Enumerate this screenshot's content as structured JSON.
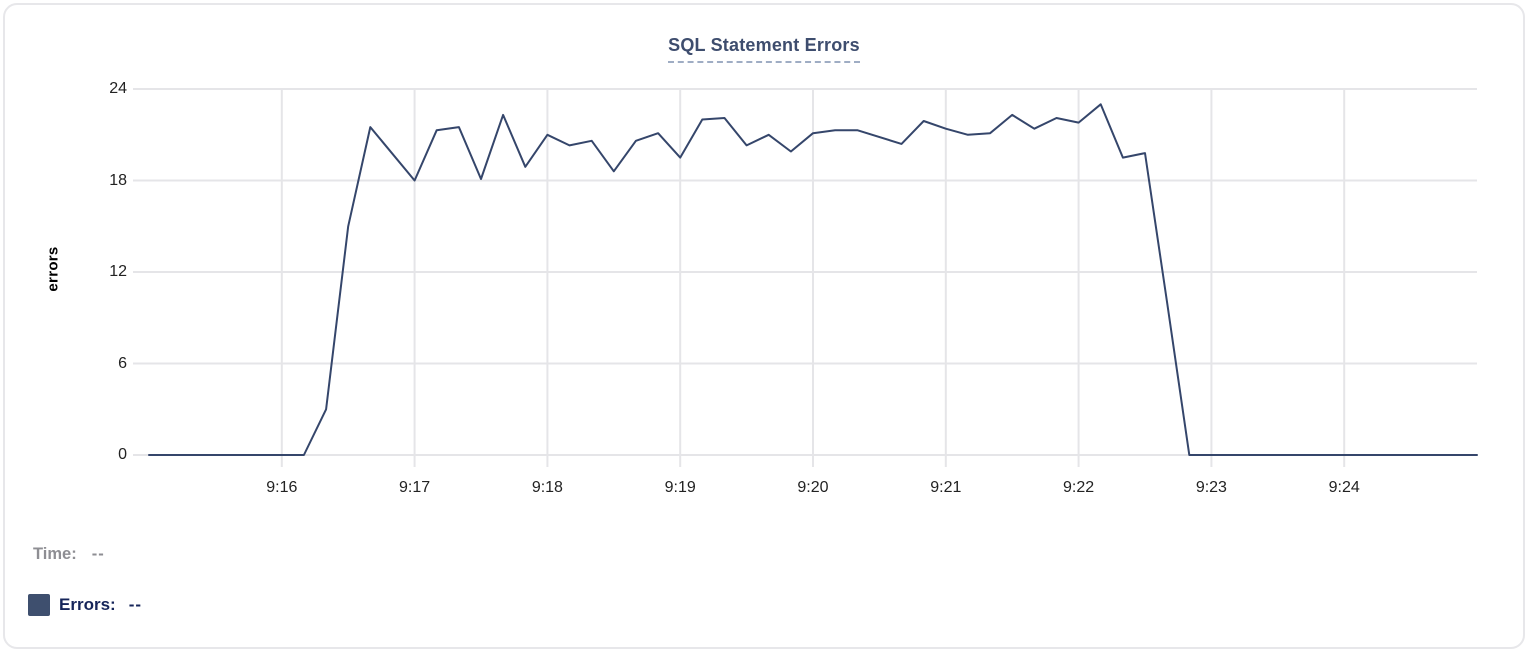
{
  "chart_data": {
    "type": "line",
    "title": "SQL Statement Errors",
    "xlabel": "",
    "ylabel": "errors",
    "ylim": [
      0,
      24
    ],
    "y_ticks": [
      0,
      6,
      12,
      18,
      24
    ],
    "x_ticks": [
      "9:16",
      "9:17",
      "9:18",
      "9:19",
      "9:20",
      "9:21",
      "9:22",
      "9:23",
      "9:24"
    ],
    "x_range": [
      "9:14:53",
      "9:25:00"
    ],
    "grid": true,
    "legend_position": "none",
    "series": [
      {
        "name": "Errors",
        "color": "#35466b",
        "points": [
          [
            "9:15:00",
            0
          ],
          [
            "9:16:10",
            0
          ],
          [
            "9:16:20",
            3
          ],
          [
            "9:16:30",
            15
          ],
          [
            "9:16:40",
            21.5
          ],
          [
            "9:17:00",
            18
          ],
          [
            "9:17:10",
            21.3
          ],
          [
            "9:17:20",
            21.5
          ],
          [
            "9:17:30",
            18.1
          ],
          [
            "9:17:40",
            22.3
          ],
          [
            "9:17:50",
            18.9
          ],
          [
            "9:18:00",
            21
          ],
          [
            "9:18:10",
            20.3
          ],
          [
            "9:18:20",
            20.6
          ],
          [
            "9:18:30",
            18.6
          ],
          [
            "9:18:40",
            20.6
          ],
          [
            "9:18:50",
            21.1
          ],
          [
            "9:19:00",
            19.5
          ],
          [
            "9:19:10",
            22
          ],
          [
            "9:19:20",
            22.1
          ],
          [
            "9:19:30",
            20.3
          ],
          [
            "9:19:40",
            21
          ],
          [
            "9:19:50",
            19.9
          ],
          [
            "9:20:00",
            21.1
          ],
          [
            "9:20:10",
            21.3
          ],
          [
            "9:20:20",
            21.3
          ],
          [
            "9:20:40",
            20.4
          ],
          [
            "9:20:50",
            21.9
          ],
          [
            "9:21:00",
            21.4
          ],
          [
            "9:21:10",
            21
          ],
          [
            "9:21:20",
            21.1
          ],
          [
            "9:21:30",
            22.3
          ],
          [
            "9:21:40",
            21.4
          ],
          [
            "9:21:50",
            22.1
          ],
          [
            "9:22:00",
            21.8
          ],
          [
            "9:22:10",
            23
          ],
          [
            "9:22:20",
            19.5
          ],
          [
            "9:22:30",
            19.8
          ],
          [
            "9:22:40",
            10
          ],
          [
            "9:22:50",
            0
          ],
          [
            "9:25:00",
            0
          ]
        ]
      }
    ]
  },
  "readout": {
    "time_label": "Time:",
    "time_value": "--",
    "errors_label": "Errors:",
    "errors_value": "--"
  },
  "colors": {
    "line": "#35466b",
    "grid": "#e5e5e8",
    "tick_label": "#222222",
    "title": "#3e4d6e",
    "title_underline": "#9fadc4",
    "card_border": "#e7e7ea",
    "time_readout": "#8e8e93",
    "errors_readout": "#16255a",
    "swatch": "#3e4f6e"
  }
}
